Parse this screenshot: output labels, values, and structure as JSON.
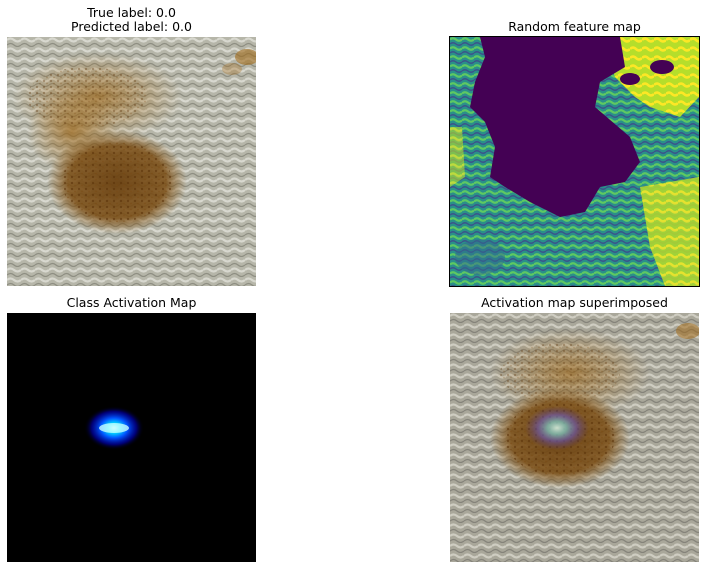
{
  "chart_data": [
    {
      "type": "image",
      "title": "True label: 0.0\nPredicted label: 0.0",
      "true_label": "True label: 0.0",
      "predicted_label": "Predicted label: 0.0",
      "content": "photo of fabric with brown stain"
    },
    {
      "type": "heatmap",
      "title": "Random feature map",
      "colormap": "viridis"
    },
    {
      "type": "heatmap",
      "title": "Class Activation Map",
      "colormap": "jet",
      "peak_intensity": 1.0
    },
    {
      "type": "image",
      "title": "Activation map superimposed",
      "content": "fabric photo with activation heatmap overlay"
    }
  ],
  "colors": {
    "fabric": "#b9b9ad",
    "stain": "#7a4a14",
    "viridis_low": "#440154",
    "viridis_mid": "#21918c",
    "viridis_high": "#fde725",
    "cam_background": "#000000",
    "cam_hot": "#00e5ff"
  }
}
